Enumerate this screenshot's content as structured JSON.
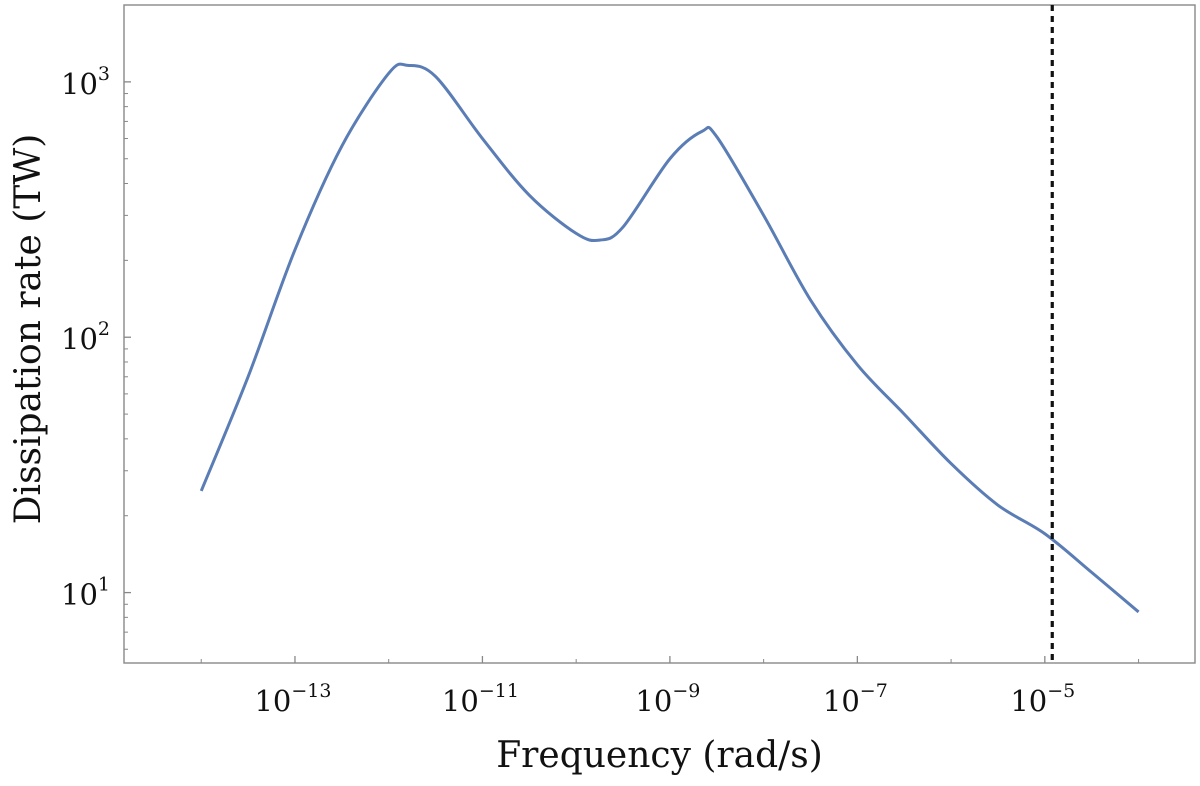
{
  "chart_data": {
    "type": "line",
    "title": "",
    "xlabel": "Frequency (rad/s)",
    "ylabel": "Dissipation rate (TW)",
    "xscale": "log",
    "yscale": "log",
    "xlim": [
      1.5e-15,
      0.0004
    ],
    "ylim": [
      5.3,
      2000
    ],
    "grid": false,
    "legend": "none",
    "x_ticks": [
      {
        "value": 1e-13,
        "base": "10",
        "exp": "−13"
      },
      {
        "value": 1e-11,
        "base": "10",
        "exp": "−11"
      },
      {
        "value": 1e-09,
        "base": "10",
        "exp": "−9"
      },
      {
        "value": 1e-07,
        "base": "10",
        "exp": "−7"
      },
      {
        "value": 1e-05,
        "base": "10",
        "exp": "−5"
      }
    ],
    "y_ticks": [
      {
        "value": 10,
        "base": "10",
        "exp": "1"
      },
      {
        "value": 100,
        "base": "10",
        "exp": "2"
      },
      {
        "value": 1000,
        "base": "10",
        "exp": "3"
      }
    ],
    "series": [
      {
        "color": "#5b7db5",
        "x": [
          1e-14,
          3.16e-14,
          1e-13,
          3.16e-13,
          1e-12,
          1.6e-12,
          3.16e-12,
          1e-11,
          3.16e-11,
          1e-10,
          1.78e-10,
          3.16e-10,
          1e-09,
          2.2e-09,
          3.16e-09,
          1e-08,
          3.16e-08,
          1e-07,
          3.16e-07,
          1e-06,
          3.16e-06,
          1e-05,
          3.16e-05,
          0.0001
        ],
        "y": [
          25,
          70,
          220,
          560,
          1080,
          1160,
          1050,
          600,
          360,
          255,
          240,
          270,
          500,
          640,
          610,
          300,
          140,
          78,
          50,
          32,
          22,
          17,
          12,
          8.4
        ]
      }
    ],
    "vline": {
      "x": 1.2e-05,
      "style": "dotted",
      "color": "#111111"
    },
    "frame_color": "#888888"
  }
}
